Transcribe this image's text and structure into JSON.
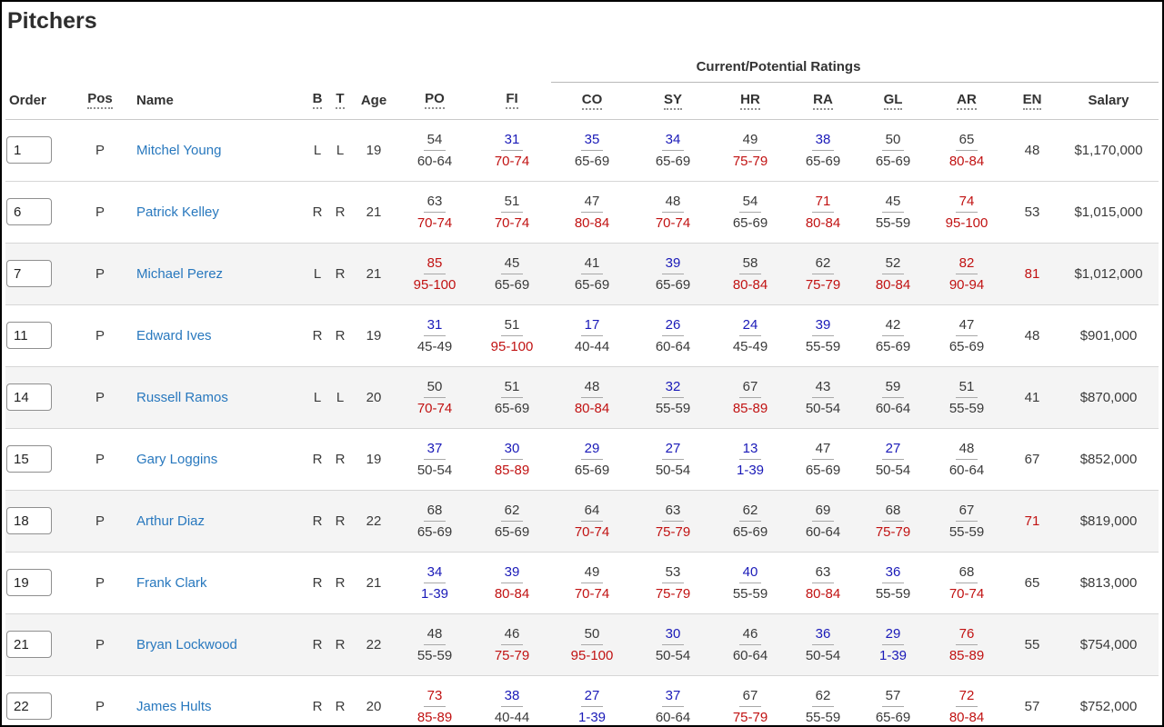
{
  "title": "Pitchers",
  "colors": {
    "low_rating": "#1a1ab8",
    "high_rating": "#c11212",
    "mid_rating": "#3a3a3a",
    "player_link": "#2878be"
  },
  "table": {
    "group_header": "Current/Potential Ratings",
    "columns": [
      {
        "key": "order",
        "label": "Order",
        "sortable": false
      },
      {
        "key": "pos",
        "label": "Pos",
        "sortable": true
      },
      {
        "key": "name",
        "label": "Name",
        "sortable": false
      },
      {
        "key": "b",
        "label": "B",
        "sortable": true
      },
      {
        "key": "t",
        "label": "T",
        "sortable": true
      },
      {
        "key": "age",
        "label": "Age",
        "sortable": false
      },
      {
        "key": "po",
        "label": "PO",
        "sortable": true
      },
      {
        "key": "fi",
        "label": "FI",
        "sortable": true
      },
      {
        "key": "co",
        "label": "CO",
        "sortable": true
      },
      {
        "key": "sy",
        "label": "SY",
        "sortable": true
      },
      {
        "key": "hr",
        "label": "HR",
        "sortable": true
      },
      {
        "key": "ra",
        "label": "RA",
        "sortable": true
      },
      {
        "key": "gl",
        "label": "GL",
        "sortable": true
      },
      {
        "key": "ar",
        "label": "AR",
        "sortable": true
      },
      {
        "key": "en",
        "label": "EN",
        "sortable": true
      },
      {
        "key": "salary",
        "label": "Salary",
        "sortable": false
      }
    ],
    "players": [
      {
        "order": "1",
        "pos": "P",
        "name": "Mitchel Young",
        "b": "L",
        "t": "L",
        "age": "19",
        "ratings": {
          "po": [
            "54",
            "60-64"
          ],
          "fi": [
            "31",
            "70-74"
          ],
          "co": [
            "35",
            "65-69"
          ],
          "sy": [
            "34",
            "65-69"
          ],
          "hr": [
            "49",
            "75-79"
          ],
          "ra": [
            "38",
            "65-69"
          ],
          "gl": [
            "50",
            "65-69"
          ],
          "ar": [
            "65",
            "80-84"
          ]
        },
        "en": "48",
        "salary": "$1,170,000"
      },
      {
        "order": "6",
        "pos": "P",
        "name": "Patrick Kelley",
        "b": "R",
        "t": "R",
        "age": "21",
        "ratings": {
          "po": [
            "63",
            "70-74"
          ],
          "fi": [
            "51",
            "70-74"
          ],
          "co": [
            "47",
            "80-84"
          ],
          "sy": [
            "48",
            "70-74"
          ],
          "hr": [
            "54",
            "65-69"
          ],
          "ra": [
            "71",
            "80-84"
          ],
          "gl": [
            "45",
            "55-59"
          ],
          "ar": [
            "74",
            "95-100"
          ]
        },
        "en": "53",
        "salary": "$1,015,000"
      },
      {
        "order": "7",
        "pos": "P",
        "name": "Michael Perez",
        "b": "L",
        "t": "R",
        "age": "21",
        "ratings": {
          "po": [
            "85",
            "95-100"
          ],
          "fi": [
            "45",
            "65-69"
          ],
          "co": [
            "41",
            "65-69"
          ],
          "sy": [
            "39",
            "65-69"
          ],
          "hr": [
            "58",
            "80-84"
          ],
          "ra": [
            "62",
            "75-79"
          ],
          "gl": [
            "52",
            "80-84"
          ],
          "ar": [
            "82",
            "90-94"
          ]
        },
        "en": "81",
        "salary": "$1,012,000"
      },
      {
        "order": "11",
        "pos": "P",
        "name": "Edward Ives",
        "b": "R",
        "t": "R",
        "age": "19",
        "ratings": {
          "po": [
            "31",
            "45-49"
          ],
          "fi": [
            "51",
            "95-100"
          ],
          "co": [
            "17",
            "40-44"
          ],
          "sy": [
            "26",
            "60-64"
          ],
          "hr": [
            "24",
            "45-49"
          ],
          "ra": [
            "39",
            "55-59"
          ],
          "gl": [
            "42",
            "65-69"
          ],
          "ar": [
            "47",
            "65-69"
          ]
        },
        "en": "48",
        "salary": "$901,000"
      },
      {
        "order": "14",
        "pos": "P",
        "name": "Russell Ramos",
        "b": "L",
        "t": "L",
        "age": "20",
        "ratings": {
          "po": [
            "50",
            "70-74"
          ],
          "fi": [
            "51",
            "65-69"
          ],
          "co": [
            "48",
            "80-84"
          ],
          "sy": [
            "32",
            "55-59"
          ],
          "hr": [
            "67",
            "85-89"
          ],
          "ra": [
            "43",
            "50-54"
          ],
          "gl": [
            "59",
            "60-64"
          ],
          "ar": [
            "51",
            "55-59"
          ]
        },
        "en": "41",
        "salary": "$870,000"
      },
      {
        "order": "15",
        "pos": "P",
        "name": "Gary Loggins",
        "b": "R",
        "t": "R",
        "age": "19",
        "ratings": {
          "po": [
            "37",
            "50-54"
          ],
          "fi": [
            "30",
            "85-89"
          ],
          "co": [
            "29",
            "65-69"
          ],
          "sy": [
            "27",
            "50-54"
          ],
          "hr": [
            "13",
            "1-39"
          ],
          "ra": [
            "47",
            "65-69"
          ],
          "gl": [
            "27",
            "50-54"
          ],
          "ar": [
            "48",
            "60-64"
          ]
        },
        "en": "67",
        "salary": "$852,000"
      },
      {
        "order": "18",
        "pos": "P",
        "name": "Arthur Diaz",
        "b": "R",
        "t": "R",
        "age": "22",
        "ratings": {
          "po": [
            "68",
            "65-69"
          ],
          "fi": [
            "62",
            "65-69"
          ],
          "co": [
            "64",
            "70-74"
          ],
          "sy": [
            "63",
            "75-79"
          ],
          "hr": [
            "62",
            "65-69"
          ],
          "ra": [
            "69",
            "60-64"
          ],
          "gl": [
            "68",
            "75-79"
          ],
          "ar": [
            "67",
            "55-59"
          ]
        },
        "en": "71",
        "salary": "$819,000"
      },
      {
        "order": "19",
        "pos": "P",
        "name": "Frank Clark",
        "b": "R",
        "t": "R",
        "age": "21",
        "ratings": {
          "po": [
            "34",
            "1-39"
          ],
          "fi": [
            "39",
            "80-84"
          ],
          "co": [
            "49",
            "70-74"
          ],
          "sy": [
            "53",
            "75-79"
          ],
          "hr": [
            "40",
            "55-59"
          ],
          "ra": [
            "63",
            "80-84"
          ],
          "gl": [
            "36",
            "55-59"
          ],
          "ar": [
            "68",
            "70-74"
          ]
        },
        "en": "65",
        "salary": "$813,000"
      },
      {
        "order": "21",
        "pos": "P",
        "name": "Bryan Lockwood",
        "b": "R",
        "t": "R",
        "age": "22",
        "ratings": {
          "po": [
            "48",
            "55-59"
          ],
          "fi": [
            "46",
            "75-79"
          ],
          "co": [
            "50",
            "95-100"
          ],
          "sy": [
            "30",
            "50-54"
          ],
          "hr": [
            "46",
            "60-64"
          ],
          "ra": [
            "36",
            "50-54"
          ],
          "gl": [
            "29",
            "1-39"
          ],
          "ar": [
            "76",
            "85-89"
          ]
        },
        "en": "55",
        "salary": "$754,000"
      },
      {
        "order": "22",
        "pos": "P",
        "name": "James Hults",
        "b": "R",
        "t": "R",
        "age": "20",
        "ratings": {
          "po": [
            "73",
            "85-89"
          ],
          "fi": [
            "38",
            "40-44"
          ],
          "co": [
            "27",
            "1-39"
          ],
          "sy": [
            "37",
            "60-64"
          ],
          "hr": [
            "67",
            "75-79"
          ],
          "ra": [
            "62",
            "55-59"
          ],
          "gl": [
            "57",
            "65-69"
          ],
          "ar": [
            "72",
            "80-84"
          ]
        },
        "en": "57",
        "salary": "$752,000"
      }
    ]
  }
}
